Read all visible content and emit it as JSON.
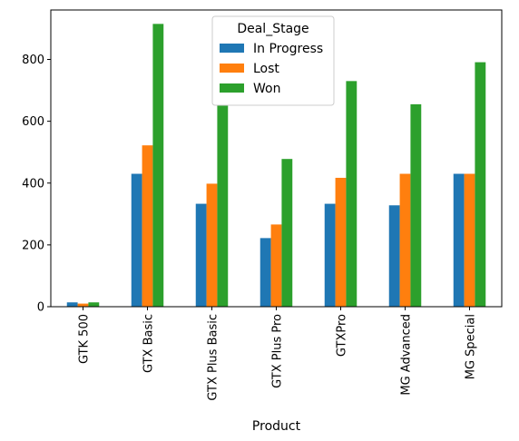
{
  "chart_data": {
    "type": "bar",
    "title": "",
    "xlabel": "Product",
    "ylabel": "",
    "categories": [
      "GTK 500",
      "GTX Basic",
      "GTX Plus Basic",
      "GTX Plus Pro",
      "GTXPro",
      "MG Advanced",
      "MG Special"
    ],
    "series": [
      {
        "name": "In Progress",
        "color": "#1f77b4",
        "values": [
          14,
          430,
          333,
          222,
          333,
          328,
          430
        ]
      },
      {
        "name": "Lost",
        "color": "#ff7f0e",
        "values": [
          10,
          522,
          398,
          266,
          417,
          430,
          430
        ]
      },
      {
        "name": "Won",
        "color": "#2ca02c",
        "values": [
          14,
          915,
          653,
          478,
          730,
          655,
          791
        ]
      }
    ],
    "ylim": [
      0,
      960
    ],
    "yticks": [
      0,
      200,
      400,
      600,
      800
    ],
    "grid": false,
    "legend": {
      "title": "Deal_Stage",
      "placement": "top-center"
    }
  }
}
